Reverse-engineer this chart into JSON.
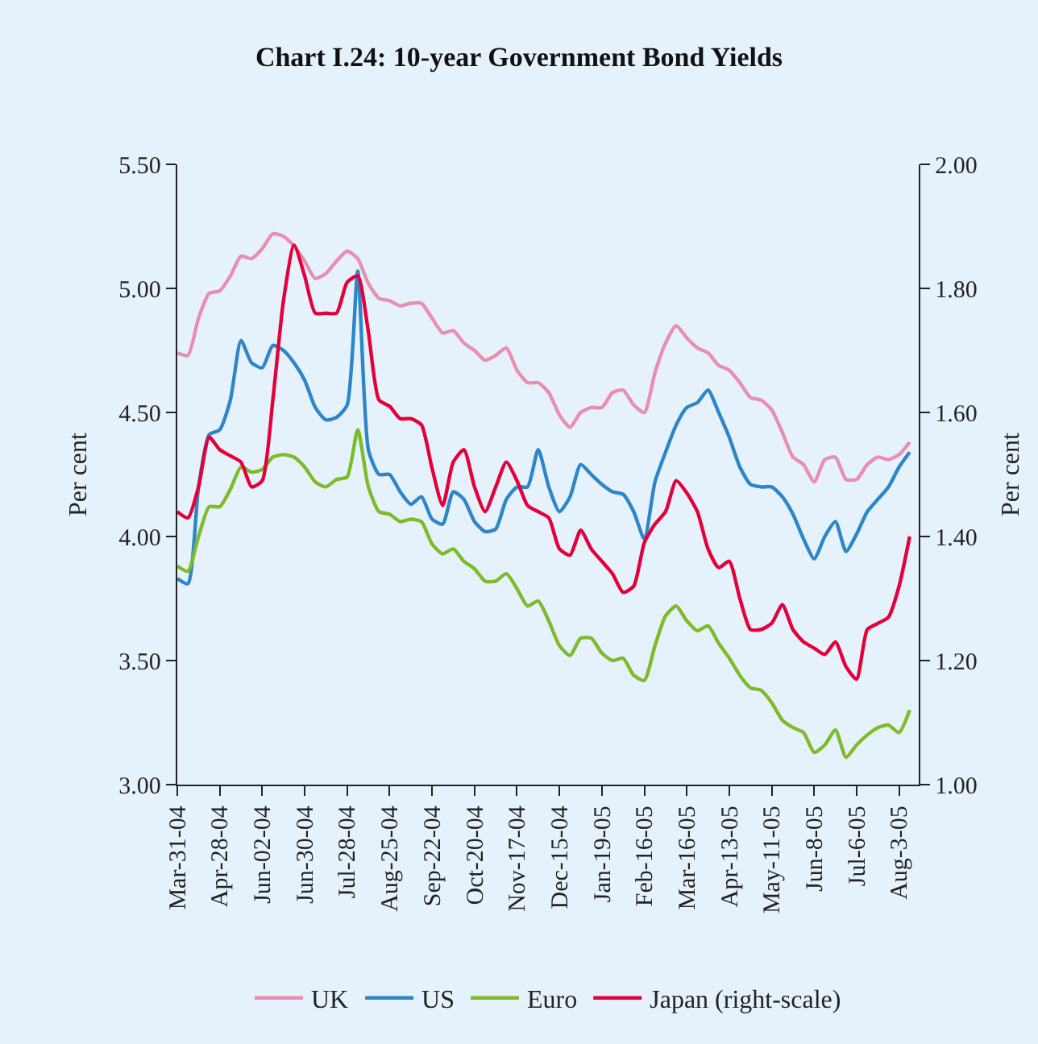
{
  "chart_data": {
    "type": "line",
    "title": "Chart I.24: 10-year Government Bond Yields",
    "ylabel": "Per cent",
    "y2label": "Per cent",
    "categories": [
      "Mar-31-04",
      null,
      null,
      null,
      "Apr-28-04",
      null,
      null,
      null,
      "Jun-02-04",
      null,
      null,
      null,
      "Jun-30-04",
      null,
      null,
      null,
      "Jul-28-04",
      null,
      null,
      null,
      "Aug-25-04",
      null,
      null,
      null,
      "Sep-22-04",
      null,
      null,
      null,
      "Oct-20-04",
      null,
      null,
      null,
      "Nov-17-04",
      null,
      null,
      null,
      "Dec-15-04",
      null,
      null,
      null,
      "Jan-19-05",
      null,
      null,
      null,
      "Feb-16-05",
      null,
      null,
      null,
      "Mar-16-05",
      null,
      null,
      null,
      "Apr-13-05",
      null,
      null,
      null,
      "May-11-05",
      null,
      null,
      null,
      "Jun-8-05",
      null,
      null,
      null,
      "Jul-6-05",
      null,
      null,
      null,
      "Aug-3-05",
      null
    ],
    "ylim": [
      3.0,
      5.5
    ],
    "yticks": [
      {
        "value": 3.0,
        "label": "3.00"
      },
      {
        "value": 3.5,
        "label": "3.50"
      },
      {
        "value": 4.0,
        "label": "4.00"
      },
      {
        "value": 4.5,
        "label": "4.50"
      },
      {
        "value": 5.0,
        "label": "5.00"
      },
      {
        "value": 5.5,
        "label": "5.50"
      }
    ],
    "y2lim": [
      1.0,
      2.0
    ],
    "y2ticks": [
      {
        "value": 1.0,
        "label": "1.00"
      },
      {
        "value": 1.2,
        "label": "1.20"
      },
      {
        "value": 1.4,
        "label": "1.40"
      },
      {
        "value": 1.6,
        "label": "1.60"
      },
      {
        "value": 1.8,
        "label": "1.80"
      },
      {
        "value": 2.0,
        "label": "2.00"
      }
    ],
    "grid": false,
    "legend": "bottom",
    "marker": "none",
    "line_style": "solid",
    "series": [
      {
        "name": "UK",
        "color": "#e88fb0",
        "values": [
          4.74,
          4.73,
          4.88,
          4.98,
          4.99,
          5.05,
          5.13,
          5.12,
          5.16,
          5.22,
          5.21,
          5.17,
          5.11,
          5.04,
          5.06,
          5.11,
          5.15,
          5.12,
          5.02,
          4.96,
          4.95,
          4.93,
          4.94,
          4.94,
          4.88,
          4.82,
          4.83,
          4.78,
          4.75,
          4.71,
          4.73,
          4.76,
          4.67,
          4.62,
          4.62,
          4.58,
          4.49,
          4.44,
          4.5,
          4.52,
          4.52,
          4.58,
          4.59,
          4.53,
          4.5,
          4.66,
          4.78,
          4.85,
          4.8,
          4.76,
          4.74,
          4.69,
          4.67,
          4.62,
          4.56,
          4.55,
          4.51,
          4.42,
          4.32,
          4.29,
          4.22,
          4.31,
          4.32,
          4.23,
          4.23,
          4.29,
          4.32,
          4.31,
          4.33,
          4.38
        ]
      },
      {
        "name": "US",
        "color": "#2e86c8",
        "values": [
          3.83,
          3.81,
          4.2,
          4.41,
          4.43,
          4.55,
          4.79,
          4.7,
          4.68,
          4.77,
          4.75,
          4.7,
          4.63,
          4.52,
          4.47,
          4.48,
          4.53,
          5.07,
          4.35,
          4.25,
          4.25,
          4.18,
          4.13,
          4.16,
          4.07,
          4.05,
          4.18,
          4.15,
          4.06,
          4.02,
          4.03,
          4.15,
          4.2,
          4.2,
          4.35,
          4.2,
          4.1,
          4.16,
          4.29,
          4.25,
          4.21,
          4.18,
          4.17,
          4.1,
          3.99,
          4.22,
          4.34,
          4.45,
          4.52,
          4.54,
          4.59,
          4.5,
          4.4,
          4.28,
          4.21,
          4.2,
          4.2,
          4.16,
          4.09,
          3.99,
          3.91,
          4.0,
          4.06,
          3.94,
          4.01,
          4.1,
          4.15,
          4.2,
          4.28,
          4.34
        ]
      },
      {
        "name": "Euro",
        "color": "#7cbb2a",
        "values": [
          3.88,
          3.86,
          4.0,
          4.12,
          4.12,
          4.19,
          4.28,
          4.26,
          4.27,
          4.32,
          4.33,
          4.32,
          4.28,
          4.22,
          4.2,
          4.23,
          4.24,
          4.43,
          4.2,
          4.1,
          4.09,
          4.06,
          4.07,
          4.06,
          3.97,
          3.93,
          3.95,
          3.9,
          3.87,
          3.82,
          3.82,
          3.85,
          3.79,
          3.72,
          3.74,
          3.66,
          3.56,
          3.52,
          3.59,
          3.59,
          3.53,
          3.5,
          3.51,
          3.44,
          3.42,
          3.56,
          3.68,
          3.72,
          3.66,
          3.62,
          3.64,
          3.57,
          3.51,
          3.44,
          3.39,
          3.38,
          3.33,
          3.26,
          3.23,
          3.21,
          3.13,
          3.16,
          3.22,
          3.11,
          3.16,
          3.2,
          3.23,
          3.24,
          3.21,
          3.3
        ]
      },
      {
        "name": "Japan (right-scale)",
        "color": "#e4003a",
        "axis": "y2",
        "values": [
          1.44,
          1.43,
          1.48,
          1.56,
          1.54,
          1.53,
          1.52,
          1.48,
          1.49,
          1.62,
          1.78,
          1.87,
          1.82,
          1.76,
          1.76,
          1.76,
          1.81,
          1.82,
          1.73,
          1.62,
          1.61,
          1.59,
          1.59,
          1.58,
          1.51,
          1.45,
          1.52,
          1.54,
          1.48,
          1.44,
          1.48,
          1.52,
          1.49,
          1.45,
          1.44,
          1.43,
          1.38,
          1.37,
          1.41,
          1.38,
          1.36,
          1.34,
          1.31,
          1.32,
          1.39,
          1.42,
          1.44,
          1.49,
          1.47,
          1.44,
          1.38,
          1.35,
          1.36,
          1.3,
          1.25,
          1.25,
          1.26,
          1.29,
          1.25,
          1.23,
          1.22,
          1.21,
          1.23,
          1.19,
          1.17,
          1.25,
          1.26,
          1.27,
          1.32,
          1.4
        ]
      }
    ]
  }
}
